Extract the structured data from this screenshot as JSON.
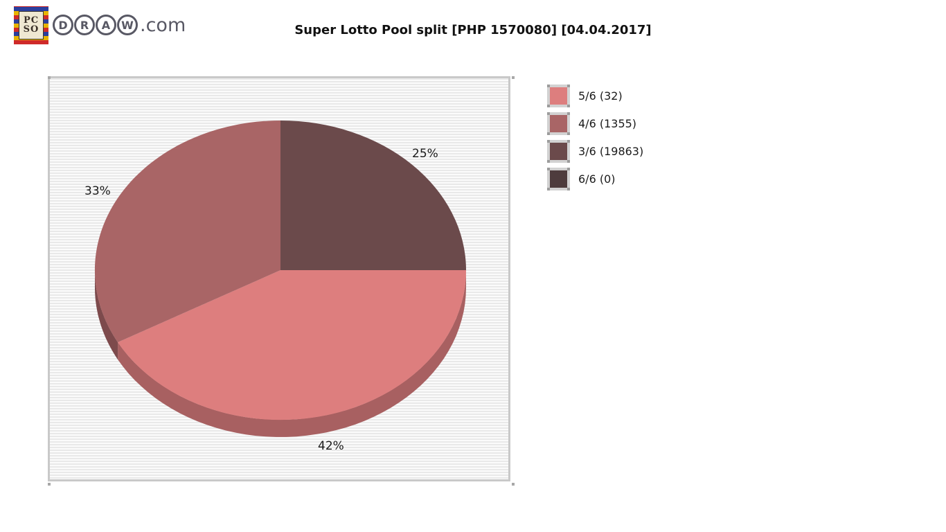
{
  "header": {
    "title": "Super Lotto Pool split [PHP 1570080] [04.04.2017]",
    "logo": {
      "icon_line1": "PC",
      "icon_line2": "SO",
      "letters": [
        "D",
        "R",
        "A",
        "W"
      ],
      "suffix": ".com"
    }
  },
  "legend": {
    "position": "right",
    "items": [
      {
        "label": "5/6 (32)",
        "color": "#dd7e7e"
      },
      {
        "label": "4/6 (1355)",
        "color": "#a96566"
      },
      {
        "label": "3/6 (19863)",
        "color": "#6b4a4b"
      },
      {
        "label": "6/6 (0)",
        "color": "#4e3c3d"
      }
    ]
  },
  "chart_data": {
    "type": "pie",
    "style": "3d",
    "title": "Super Lotto Pool split [PHP 1570080] [04.04.2017]",
    "currency": "PHP",
    "pool_total": 1570080,
    "draw_date": "04.04.2017",
    "start_angle_deg": 0,
    "direction": "clockwise",
    "legend_position": "right",
    "background": "horizontal gray pinstripes",
    "slices": [
      {
        "label": "3/6",
        "winners": 19863,
        "percent": 25,
        "pct_label": "25%",
        "color": "#6b4a4b",
        "side_color": "#533b3c"
      },
      {
        "label": "5/6",
        "winners": 32,
        "percent": 42,
        "pct_label": "42%",
        "color": "#dd7e7e",
        "side_color": "#a86061"
      },
      {
        "label": "4/6",
        "winners": 1355,
        "percent": 33,
        "pct_label": "33%",
        "color": "#a96566",
        "side_color": "#7d4a4c"
      },
      {
        "label": "6/6",
        "winners": 0,
        "percent": 0,
        "pct_label": "",
        "color": "#4e3c3d",
        "side_color": "#3a2d2e"
      }
    ]
  }
}
